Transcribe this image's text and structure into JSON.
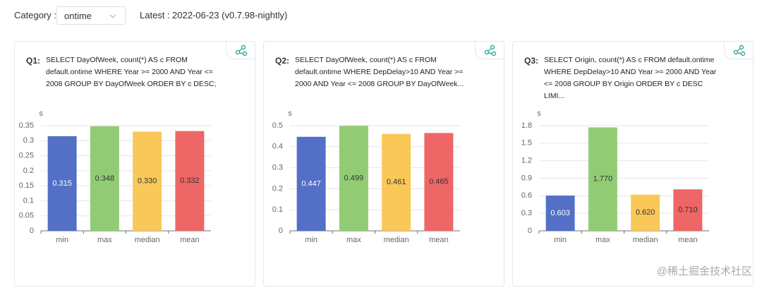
{
  "header": {
    "category_label": "Category :",
    "category_value": "ontime",
    "latest_label": "Latest :",
    "latest_value": "2022-06-23 (v0.7.98-nightly)"
  },
  "watermark": "@稀土掘金技术社区",
  "chart_data": [
    {
      "type": "bar",
      "title": "Q1:",
      "subtitle": "SELECT DayOfWeek, count(*) AS c FROM default.ontime WHERE Year >= 2000 AND Year <= 2008 GROUP BY DayOfWeek ORDER BY c DESC;",
      "y_label": "s",
      "categories": [
        "min",
        "max",
        "median",
        "mean"
      ],
      "values": [
        0.315,
        0.348,
        0.33,
        0.332
      ],
      "value_labels": [
        "0.315",
        "0.348",
        "0.330",
        "0.332"
      ],
      "colors": [
        "#5470c6",
        "#91cc75",
        "#fac858",
        "#ee6666"
      ],
      "ylim": [
        0,
        0.35
      ],
      "yticks": [
        0,
        0.05,
        0.1,
        0.15,
        0.2,
        0.25,
        0.3,
        0.35
      ],
      "grid": true
    },
    {
      "type": "bar",
      "title": "Q2:",
      "subtitle": "SELECT DayOfWeek, count(*) AS c FROM default.ontime WHERE DepDelay>10 AND Year >= 2000 AND Year <= 2008 GROUP BY DayOfWeek...",
      "y_label": "s",
      "categories": [
        "min",
        "max",
        "median",
        "mean"
      ],
      "values": [
        0.447,
        0.499,
        0.461,
        0.465
      ],
      "value_labels": [
        "0.447",
        "0.499",
        "0.461",
        "0.465"
      ],
      "colors": [
        "#5470c6",
        "#91cc75",
        "#fac858",
        "#ee6666"
      ],
      "ylim": [
        0,
        0.5
      ],
      "yticks": [
        0,
        0.1,
        0.2,
        0.3,
        0.4,
        0.5
      ],
      "grid": true
    },
    {
      "type": "bar",
      "title": "Q3:",
      "subtitle": "SELECT Origin, count(*) AS c FROM default.ontime WHERE DepDelay>10 AND Year >= 2000 AND Year <= 2008 GROUP BY Origin ORDER BY c DESC LIMI...",
      "y_label": "s",
      "categories": [
        "min",
        "max",
        "median",
        "mean"
      ],
      "values": [
        0.603,
        1.77,
        0.62,
        0.71
      ],
      "value_labels": [
        "0.603",
        "1.770",
        "0.620",
        "0.710"
      ],
      "colors": [
        "#5470c6",
        "#91cc75",
        "#fac858",
        "#ee6666"
      ],
      "ylim": [
        0,
        1.8
      ],
      "yticks": [
        0,
        0.3,
        0.6,
        0.9,
        1.2,
        1.5,
        1.8
      ],
      "grid": true
    }
  ]
}
